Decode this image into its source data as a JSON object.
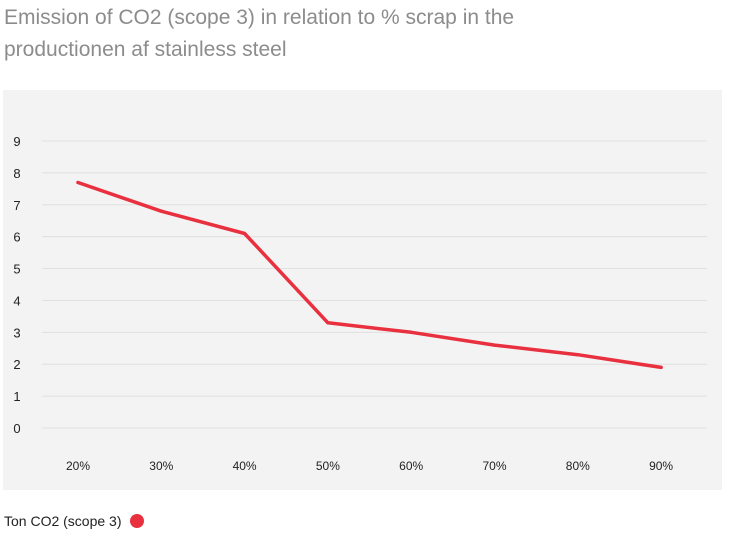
{
  "chart_data": {
    "type": "line",
    "title": "Emission of CO2 (scope 3) in relation to % scrap in the productionen af stainless steel",
    "xlabel": "",
    "ylabel": "",
    "categories": [
      "20%",
      "30%",
      "40%",
      "50%",
      "60%",
      "70%",
      "80%",
      "90%"
    ],
    "y_ticks": [
      "0",
      "1",
      "2",
      "3",
      "4",
      "5",
      "6",
      "7",
      "8",
      "9"
    ],
    "ylim": [
      0,
      9
    ],
    "grid": true,
    "legend_position": "bottom-left",
    "series": [
      {
        "name": "Ton CO2 (scope 3)",
        "color": "#e8303f",
        "values": [
          7.7,
          6.8,
          6.1,
          3.3,
          3.0,
          2.6,
          2.3,
          1.9
        ]
      }
    ]
  },
  "colors": {
    "panel_background": "#f3f3f3",
    "gridline": "#e0e0e0",
    "title_text": "#8c8c8c",
    "axis_text": "#222222"
  }
}
